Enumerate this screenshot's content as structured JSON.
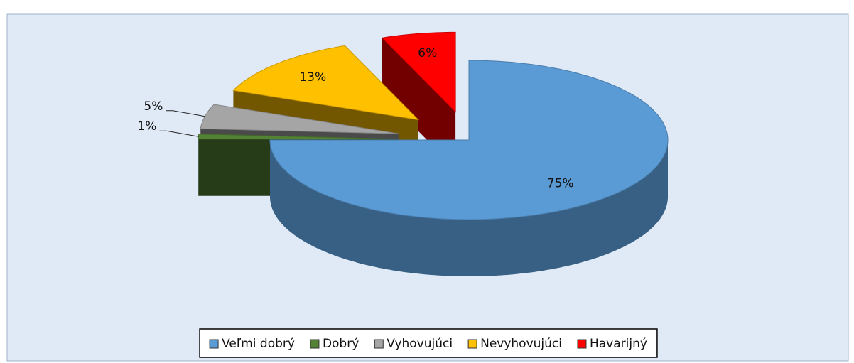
{
  "chart_data": {
    "type": "pie3d",
    "categories": [
      "Veľmi dobrý",
      "Dobrý",
      "Vyhovujúci",
      "Nevyhovujúci",
      "Havarijný"
    ],
    "values": [
      75,
      1,
      5,
      13,
      6
    ],
    "value_labels": [
      "75%",
      "1%",
      "5%",
      "13%",
      "6%"
    ],
    "colors": [
      "#5b9bd5",
      "#548235",
      "#a5a5a5",
      "#ffc000",
      "#ff0000"
    ],
    "legend": "bottom"
  }
}
